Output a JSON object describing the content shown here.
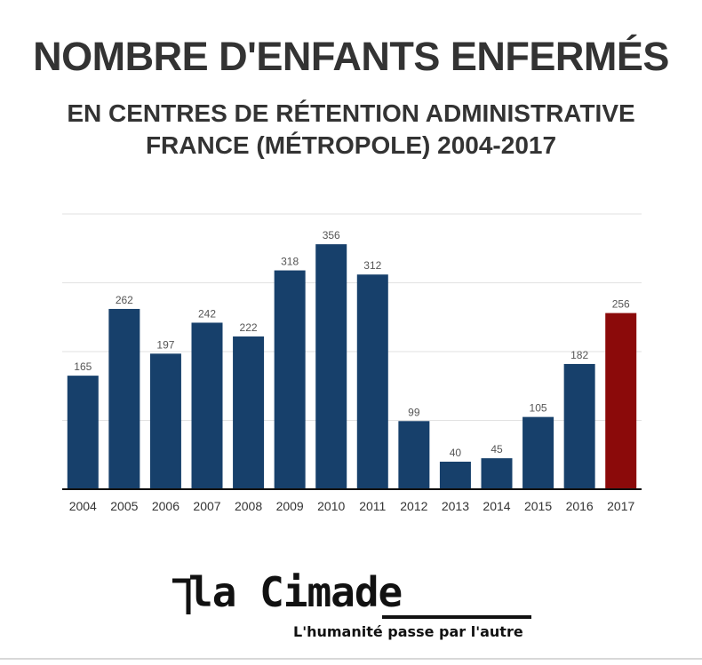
{
  "title": "NOMBRE D'ENFANTS ENFERMÉS",
  "subtitle_line1": "EN CENTRES DE RÉTENTION ADMINISTRATIVE",
  "subtitle_line2": "FRANCE (MÉTROPOLE) 2004-2017",
  "chart_data": {
    "type": "bar",
    "categories": [
      "2004",
      "2005",
      "2006",
      "2007",
      "2008",
      "2009",
      "2010",
      "2011",
      "2012",
      "2013",
      "2014",
      "2015",
      "2016",
      "2017"
    ],
    "values": [
      165,
      262,
      197,
      242,
      222,
      318,
      356,
      312,
      99,
      40,
      45,
      105,
      182,
      256
    ],
    "ylim": [
      0,
      400
    ],
    "grid": true,
    "bar_color": "#17406b",
    "highlight_color": "#8b0a0a",
    "highlight_category": "2017"
  },
  "logo": {
    "name": "la Cimade",
    "tagline": "L'humanité passe par l'autre"
  }
}
